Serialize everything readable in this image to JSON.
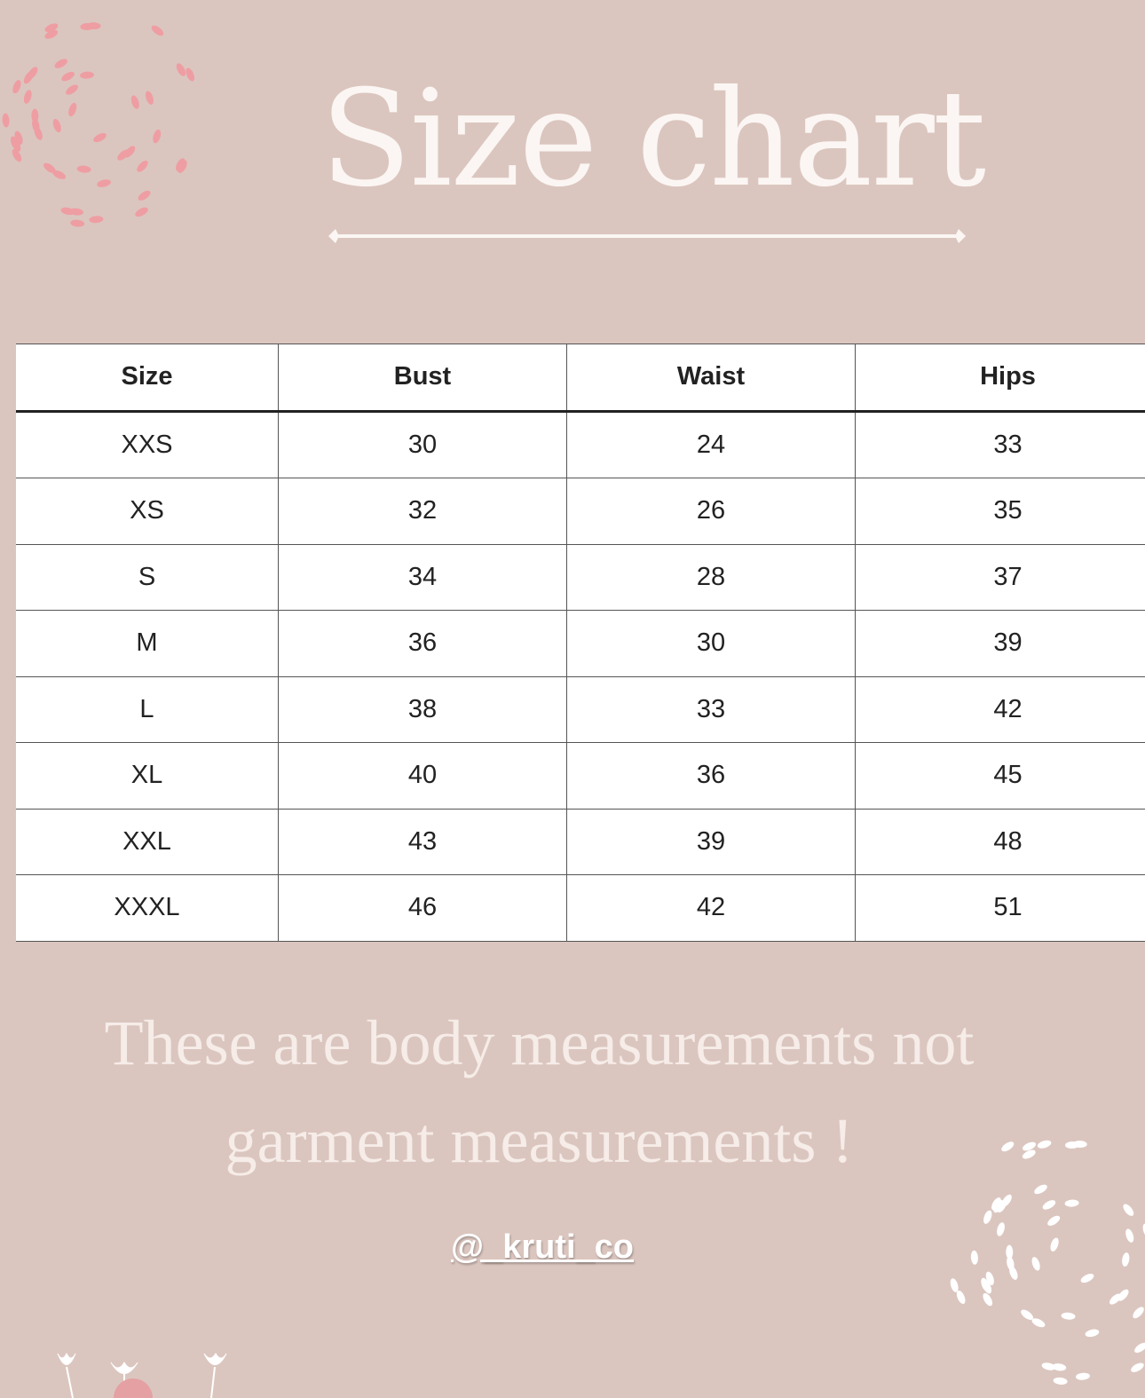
{
  "title": "Size chart",
  "table": {
    "headers": [
      "Size",
      "Bust",
      "Waist",
      "Hips"
    ],
    "rows": [
      [
        "XXS",
        "30",
        "24",
        "33"
      ],
      [
        "XS",
        "32",
        "26",
        "35"
      ],
      [
        "S",
        "34",
        "28",
        "37"
      ],
      [
        "M",
        "36",
        "30",
        "39"
      ],
      [
        "L",
        "38",
        "33",
        "42"
      ],
      [
        "XL",
        "40",
        "36",
        "45"
      ],
      [
        "XXL",
        "43",
        "39",
        "48"
      ],
      [
        "XXXL",
        "46",
        "42",
        "51"
      ]
    ]
  },
  "note_line1": "These are body measurements not",
  "note_line2": "garment measurements !",
  "handle": "@_kruti_co",
  "colors": {
    "background": "#dbc6bf",
    "accent_dots": "#ee9ea3",
    "text_light": "#fbf6f3"
  }
}
